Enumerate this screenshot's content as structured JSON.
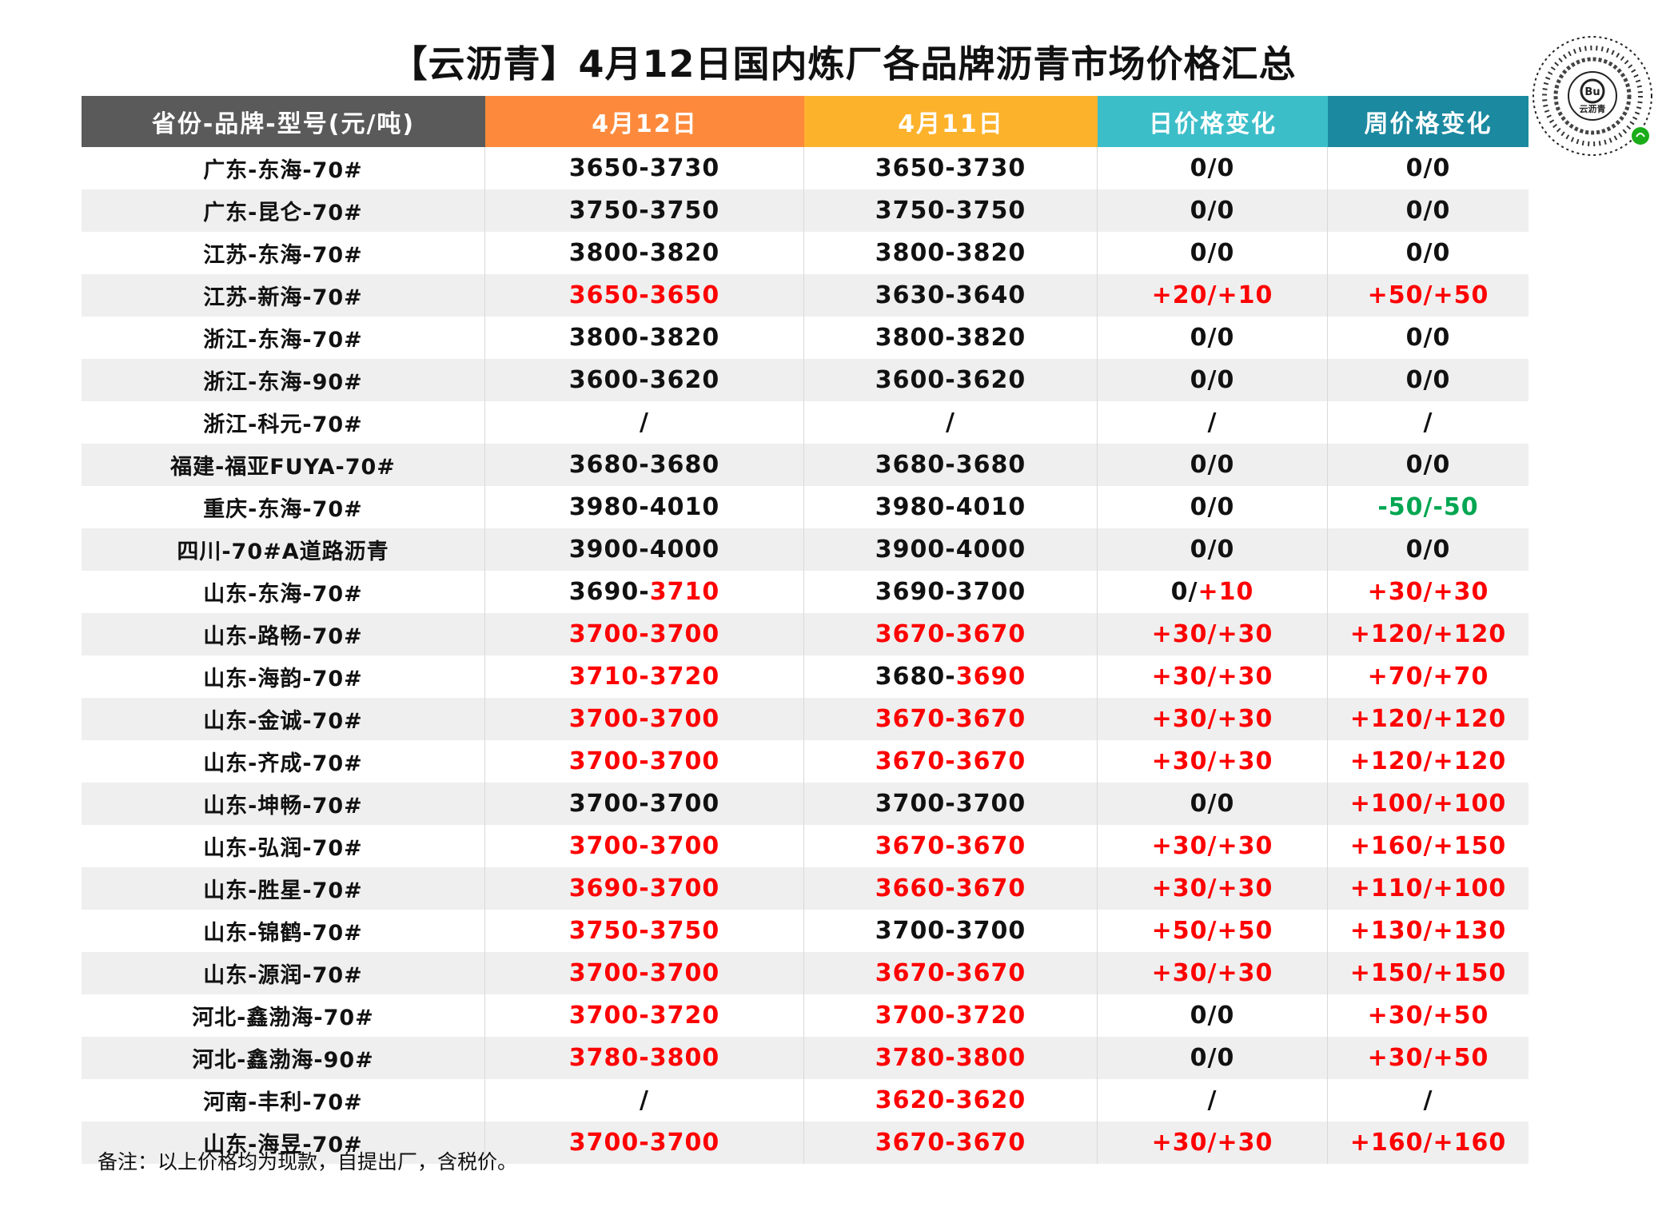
{
  "title": "【云沥青】4月12日国内炼厂各品牌沥青市场价格汇总",
  "qr_label": "云沥青",
  "qr_badge": "Bu",
  "colors": {
    "header_col0": "#5a5a5a",
    "header_col1": "#fd8a3c",
    "header_col2": "#fdb22c",
    "header_col3": "#3cbec9",
    "header_col4": "#1b89a0",
    "up": "#ff0000",
    "down": "#00a651",
    "neutral": "#111111"
  },
  "headers": [
    "省份-品牌-型号(元/吨)",
    "4月12日",
    "4月11日",
    "日价格变化",
    "周价格变化"
  ],
  "rows": [
    {
      "name": "广东-东海-70#",
      "d12": [
        [
          "3650-3730",
          "black"
        ]
      ],
      "d11": [
        [
          "3650-3730",
          "black"
        ]
      ],
      "day": [
        [
          "0/0",
          "black"
        ]
      ],
      "week": [
        [
          "0/0",
          "black"
        ]
      ]
    },
    {
      "name": "广东-昆仑-70#",
      "d12": [
        [
          "3750-3750",
          "black"
        ]
      ],
      "d11": [
        [
          "3750-3750",
          "black"
        ]
      ],
      "day": [
        [
          "0/0",
          "black"
        ]
      ],
      "week": [
        [
          "0/0",
          "black"
        ]
      ]
    },
    {
      "name": "江苏-东海-70#",
      "d12": [
        [
          "3800-3820",
          "black"
        ]
      ],
      "d11": [
        [
          "3800-3820",
          "black"
        ]
      ],
      "day": [
        [
          "0/0",
          "black"
        ]
      ],
      "week": [
        [
          "0/0",
          "black"
        ]
      ]
    },
    {
      "name": "江苏-新海-70#",
      "d12": [
        [
          "3650-3650",
          "red"
        ]
      ],
      "d11": [
        [
          "3630-3640",
          "black"
        ]
      ],
      "day": [
        [
          "+20/+10",
          "red"
        ]
      ],
      "week": [
        [
          "+50/+50",
          "red"
        ]
      ]
    },
    {
      "name": "浙江-东海-70#",
      "d12": [
        [
          "3800-3820",
          "black"
        ]
      ],
      "d11": [
        [
          "3800-3820",
          "black"
        ]
      ],
      "day": [
        [
          "0/0",
          "black"
        ]
      ],
      "week": [
        [
          "0/0",
          "black"
        ]
      ]
    },
    {
      "name": "浙江-东海-90#",
      "d12": [
        [
          "3600-3620",
          "black"
        ]
      ],
      "d11": [
        [
          "3600-3620",
          "black"
        ]
      ],
      "day": [
        [
          "0/0",
          "black"
        ]
      ],
      "week": [
        [
          "0/0",
          "black"
        ]
      ]
    },
    {
      "name": "浙江-科元-70#",
      "d12": [
        [
          "/",
          "black"
        ]
      ],
      "d11": [
        [
          "/",
          "black"
        ]
      ],
      "day": [
        [
          "/",
          "black"
        ]
      ],
      "week": [
        [
          "/",
          "black"
        ]
      ]
    },
    {
      "name": "福建-福亚FUYA-70#",
      "d12": [
        [
          "3680-3680",
          "black"
        ]
      ],
      "d11": [
        [
          "3680-3680",
          "black"
        ]
      ],
      "day": [
        [
          "0/0",
          "black"
        ]
      ],
      "week": [
        [
          "0/0",
          "black"
        ]
      ]
    },
    {
      "name": "重庆-东海-70#",
      "d12": [
        [
          "3980-4010",
          "black"
        ]
      ],
      "d11": [
        [
          "3980-4010",
          "black"
        ]
      ],
      "day": [
        [
          "0/0",
          "black"
        ]
      ],
      "week": [
        [
          "-50/-50",
          "green"
        ]
      ]
    },
    {
      "name": "四川-70#A道路沥青",
      "d12": [
        [
          "3900-4000",
          "black"
        ]
      ],
      "d11": [
        [
          "3900-4000",
          "black"
        ]
      ],
      "day": [
        [
          "0/0",
          "black"
        ]
      ],
      "week": [
        [
          "0/0",
          "black"
        ]
      ]
    },
    {
      "name": "山东-东海-70#",
      "d12": [
        [
          "3690-",
          "black"
        ],
        [
          "3710",
          "red"
        ]
      ],
      "d11": [
        [
          "3690-3700",
          "black"
        ]
      ],
      "day": [
        [
          "0/",
          "black"
        ],
        [
          "+10",
          "red"
        ]
      ],
      "week": [
        [
          "+30/+30",
          "red"
        ]
      ]
    },
    {
      "name": "山东-路畅-70#",
      "d12": [
        [
          "3700-3700",
          "red"
        ]
      ],
      "d11": [
        [
          "3670-3670",
          "red"
        ]
      ],
      "day": [
        [
          "+30/+30",
          "red"
        ]
      ],
      "week": [
        [
          "+120/+120",
          "red"
        ]
      ]
    },
    {
      "name": "山东-海韵-70#",
      "d12": [
        [
          "3710-3720",
          "red"
        ]
      ],
      "d11": [
        [
          "3680-",
          "black"
        ],
        [
          "3690",
          "red"
        ]
      ],
      "day": [
        [
          "+30/+30",
          "red"
        ]
      ],
      "week": [
        [
          "+70/+70",
          "red"
        ]
      ]
    },
    {
      "name": "山东-金诚-70#",
      "d12": [
        [
          "3700-3700",
          "red"
        ]
      ],
      "d11": [
        [
          "3670-3670",
          "red"
        ]
      ],
      "day": [
        [
          "+30/+30",
          "red"
        ]
      ],
      "week": [
        [
          "+120/+120",
          "red"
        ]
      ]
    },
    {
      "name": "山东-齐成-70#",
      "d12": [
        [
          "3700-3700",
          "red"
        ]
      ],
      "d11": [
        [
          "3670-3670",
          "red"
        ]
      ],
      "day": [
        [
          "+30/+30",
          "red"
        ]
      ],
      "week": [
        [
          "+120/+120",
          "red"
        ]
      ]
    },
    {
      "name": "山东-坤畅-70#",
      "d12": [
        [
          "3700-3700",
          "black"
        ]
      ],
      "d11": [
        [
          "3700-3700",
          "black"
        ]
      ],
      "day": [
        [
          "0/0",
          "black"
        ]
      ],
      "week": [
        [
          "+100/+100",
          "red"
        ]
      ]
    },
    {
      "name": "山东-弘润-70#",
      "d12": [
        [
          "3700-3700",
          "red"
        ]
      ],
      "d11": [
        [
          "3670-3670",
          "red"
        ]
      ],
      "day": [
        [
          "+30/+30",
          "red"
        ]
      ],
      "week": [
        [
          "+160/+150",
          "red"
        ]
      ]
    },
    {
      "name": "山东-胜星-70#",
      "d12": [
        [
          "3690-3700",
          "red"
        ]
      ],
      "d11": [
        [
          "3660-3670",
          "red"
        ]
      ],
      "day": [
        [
          "+30/+30",
          "red"
        ]
      ],
      "week": [
        [
          "+110/+100",
          "red"
        ]
      ]
    },
    {
      "name": "山东-锦鹤-70#",
      "d12": [
        [
          "3750-3750",
          "red"
        ]
      ],
      "d11": [
        [
          "3700-3700",
          "black"
        ]
      ],
      "day": [
        [
          "+50/+50",
          "red"
        ]
      ],
      "week": [
        [
          "+130/+130",
          "red"
        ]
      ]
    },
    {
      "name": "山东-源润-70#",
      "d12": [
        [
          "3700-3700",
          "red"
        ]
      ],
      "d11": [
        [
          "3670-3670",
          "red"
        ]
      ],
      "day": [
        [
          "+30/+30",
          "red"
        ]
      ],
      "week": [
        [
          "+150/+150",
          "red"
        ]
      ]
    },
    {
      "name": "河北-鑫渤海-70#",
      "d12": [
        [
          "3700-3720",
          "red"
        ]
      ],
      "d11": [
        [
          "3700-3720",
          "red"
        ]
      ],
      "day": [
        [
          "0/0",
          "black"
        ]
      ],
      "week": [
        [
          "+30/+50",
          "red"
        ]
      ]
    },
    {
      "name": "河北-鑫渤海-90#",
      "d12": [
        [
          "3780-3800",
          "red"
        ]
      ],
      "d11": [
        [
          "3780-3800",
          "red"
        ]
      ],
      "day": [
        [
          "0/0",
          "black"
        ]
      ],
      "week": [
        [
          "+30/+50",
          "red"
        ]
      ]
    },
    {
      "name": "河南-丰利-70#",
      "d12": [
        [
          "/",
          "black"
        ]
      ],
      "d11": [
        [
          "3620-3620",
          "red"
        ]
      ],
      "day": [
        [
          "/",
          "black"
        ]
      ],
      "week": [
        [
          "/",
          "black"
        ]
      ]
    },
    {
      "name": "山东-海昱-70#",
      "d12": [
        [
          "3700-3700",
          "red"
        ]
      ],
      "d11": [
        [
          "3670-3670",
          "red"
        ]
      ],
      "day": [
        [
          "+30/+30",
          "red"
        ]
      ],
      "week": [
        [
          "+160/+160",
          "red"
        ]
      ]
    }
  ],
  "footnote": "备注：以上价格均为现款，自提出厂，含税价。"
}
